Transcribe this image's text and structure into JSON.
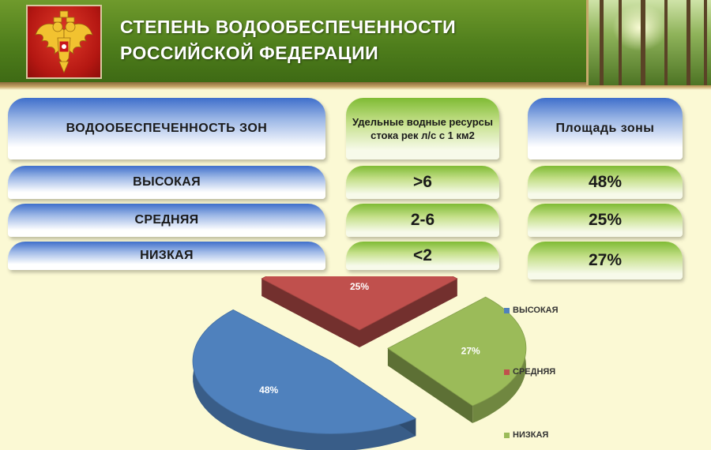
{
  "header": {
    "title_line1": "СТЕПЕНЬ ВОДООБЕСПЕЧЕННОСТИ",
    "title_line2": "РОССИЙСКОЙ ФЕДЕРАЦИИ",
    "emblem_icon": "coat-of-arms-icon",
    "photo": "forest-photo"
  },
  "table": {
    "columns": [
      "ВОДООБЕСПЕЧЕННОСТЬ  ЗОН",
      "Удельные водные ресурсы стока рек л/с с 1 км2",
      "Площадь  зоны"
    ],
    "rows": [
      {
        "zone": "ВЫСОКАЯ",
        "resources": ">6",
        "area": "48%"
      },
      {
        "zone": "СРЕДНЯЯ",
        "resources": "2-6",
        "area": "25%"
      },
      {
        "zone": "НИЗКАЯ",
        "resources": "<2",
        "area": "27%"
      }
    ]
  },
  "chart_data": {
    "type": "pie",
    "categories": [
      "ВЫСОКАЯ",
      "СРЕДНЯЯ",
      "НИЗКАЯ"
    ],
    "values": [
      48,
      25,
      27
    ],
    "labels": [
      "48%",
      "25%",
      "27%"
    ],
    "colors": [
      "#4f81bd",
      "#c0504d",
      "#9bbb59"
    ],
    "legend": "right",
    "style": "3d-exploded"
  }
}
